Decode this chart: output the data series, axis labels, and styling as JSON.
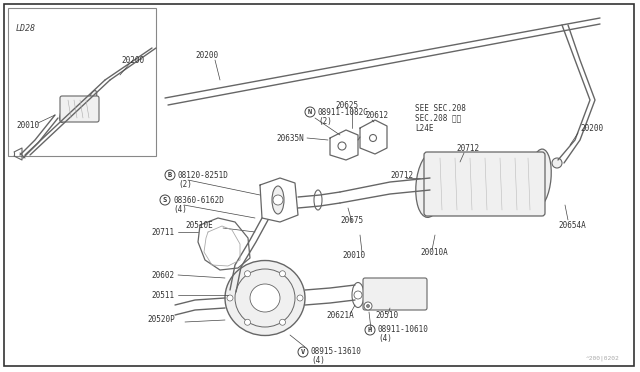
{
  "bg": "#ffffff",
  "border": "#000000",
  "gray": "#888888",
  "darkgray": "#444444",
  "lightgray": "#cccccc",
  "textcolor": "#333333",
  "fig_width": 6.4,
  "fig_height": 3.72,
  "dpi": 100,
  "watermark": "^200|0202",
  "inset_label": "LD28",
  "sec208": "SEE SEC.208\nSEC.208 参照\nL24E"
}
